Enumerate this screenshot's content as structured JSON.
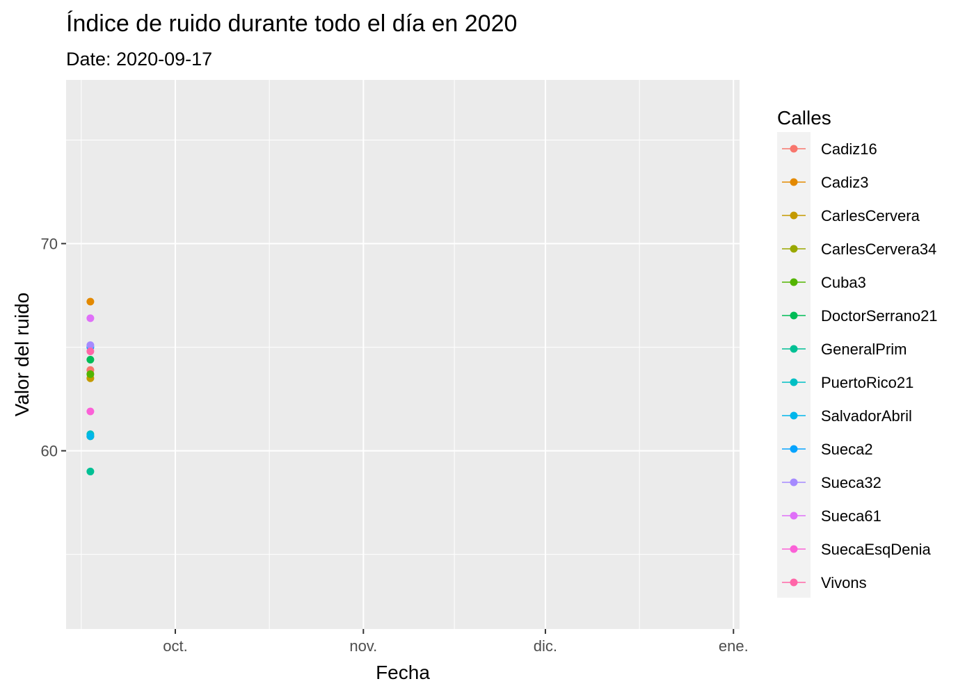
{
  "chart_data": {
    "type": "scatter",
    "title": "Índice de ruido durante todo el día en 2020",
    "subtitle": "Date: 2020-09-17",
    "xlabel": "Fecha",
    "ylabel": "Valor del ruido",
    "x_ticks": [
      {
        "label": "oct.",
        "date": "2020-10-01"
      },
      {
        "label": "nov.",
        "date": "2020-11-01"
      },
      {
        "label": "dic.",
        "date": "2020-12-01"
      },
      {
        "label": "ene.",
        "date": "2021-01-01"
      }
    ],
    "xlim": [
      "2020-09-13",
      "2021-01-02"
    ],
    "y_ticks": [
      60,
      70
    ],
    "ylim": [
      51.4,
      77.9
    ],
    "grid": true,
    "legend": {
      "title": "Calles",
      "position": "right"
    },
    "series": [
      {
        "name": "Cadiz16",
        "color": "#F8766D",
        "x": "2020-09-17",
        "y": 63.9
      },
      {
        "name": "Cadiz3",
        "color": "#E38900",
        "x": "2020-09-17",
        "y": 67.2
      },
      {
        "name": "CarlesCervera",
        "color": "#C49A00",
        "x": "2020-09-17",
        "y": 63.5
      },
      {
        "name": "CarlesCervera34",
        "color": "#99A800",
        "x": "2020-09-17",
        "y": 60.7
      },
      {
        "name": "Cuba3",
        "color": "#53B400",
        "x": "2020-09-17",
        "y": 63.7
      },
      {
        "name": "DoctorSerrano21",
        "color": "#00BC56",
        "x": "2020-09-17",
        "y": 64.4
      },
      {
        "name": "GeneralPrim",
        "color": "#00C094",
        "x": "2020-09-17",
        "y": 59.0
      },
      {
        "name": "PuertoRico21",
        "color": "#00BFC4",
        "x": "2020-09-17",
        "y": 60.8
      },
      {
        "name": "SalvadorAbril",
        "color": "#00B6EB",
        "x": "2020-09-17",
        "y": 60.7
      },
      {
        "name": "Sueca2",
        "color": "#06A4FF",
        "x": "2020-09-17",
        "y": 65.0
      },
      {
        "name": "Sueca32",
        "color": "#A58AFF",
        "x": "2020-09-17",
        "y": 65.1
      },
      {
        "name": "Sueca61",
        "color": "#DF70F8",
        "x": "2020-09-17",
        "y": 66.4
      },
      {
        "name": "SuecaEsqDenia",
        "color": "#FB61D7",
        "x": "2020-09-17",
        "y": 61.9
      },
      {
        "name": "Vivons",
        "color": "#FF66A8",
        "x": "2020-09-17",
        "y": 64.8
      }
    ]
  }
}
